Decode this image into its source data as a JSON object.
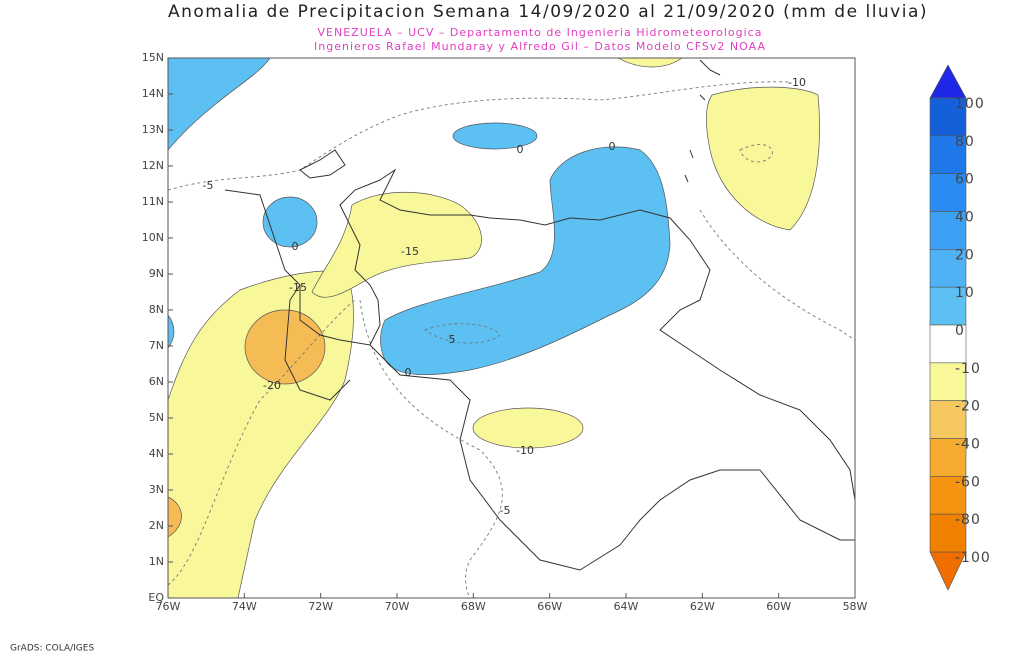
{
  "title": "Anomalia de Precipitacion Semana 14/09/2020 al 21/09/2020 (mm de lluvia)",
  "subtitle_lines": [
    "VENEZUELA – UCV – Departamento de Ingenieria Hidrometeorologica",
    "Ingenieros Rafael Mundaray y Alfredo Gil – Datos Modelo CFSv2 NOAA"
  ],
  "map": {
    "lat_labels": [
      "15N",
      "14N",
      "13N",
      "12N",
      "11N",
      "10N",
      "9N",
      "8N",
      "7N",
      "6N",
      "5N",
      "4N",
      "3N",
      "2N",
      "1N",
      "EQ"
    ],
    "lon_labels": [
      "76W",
      "74W",
      "72W",
      "70W",
      "68W",
      "66W",
      "64W",
      "62W",
      "60W",
      "58W"
    ],
    "contour_labels": [
      0,
      0,
      0,
      0,
      5,
      -5,
      -5,
      -10,
      -10,
      -15,
      -15,
      -20
    ]
  },
  "colorbar": {
    "labels": [
      100,
      80,
      60,
      40,
      20,
      10,
      0,
      -10,
      -20,
      -40,
      -60,
      -80,
      -100
    ]
  },
  "footer": "GrADS: COLA/IGES"
}
